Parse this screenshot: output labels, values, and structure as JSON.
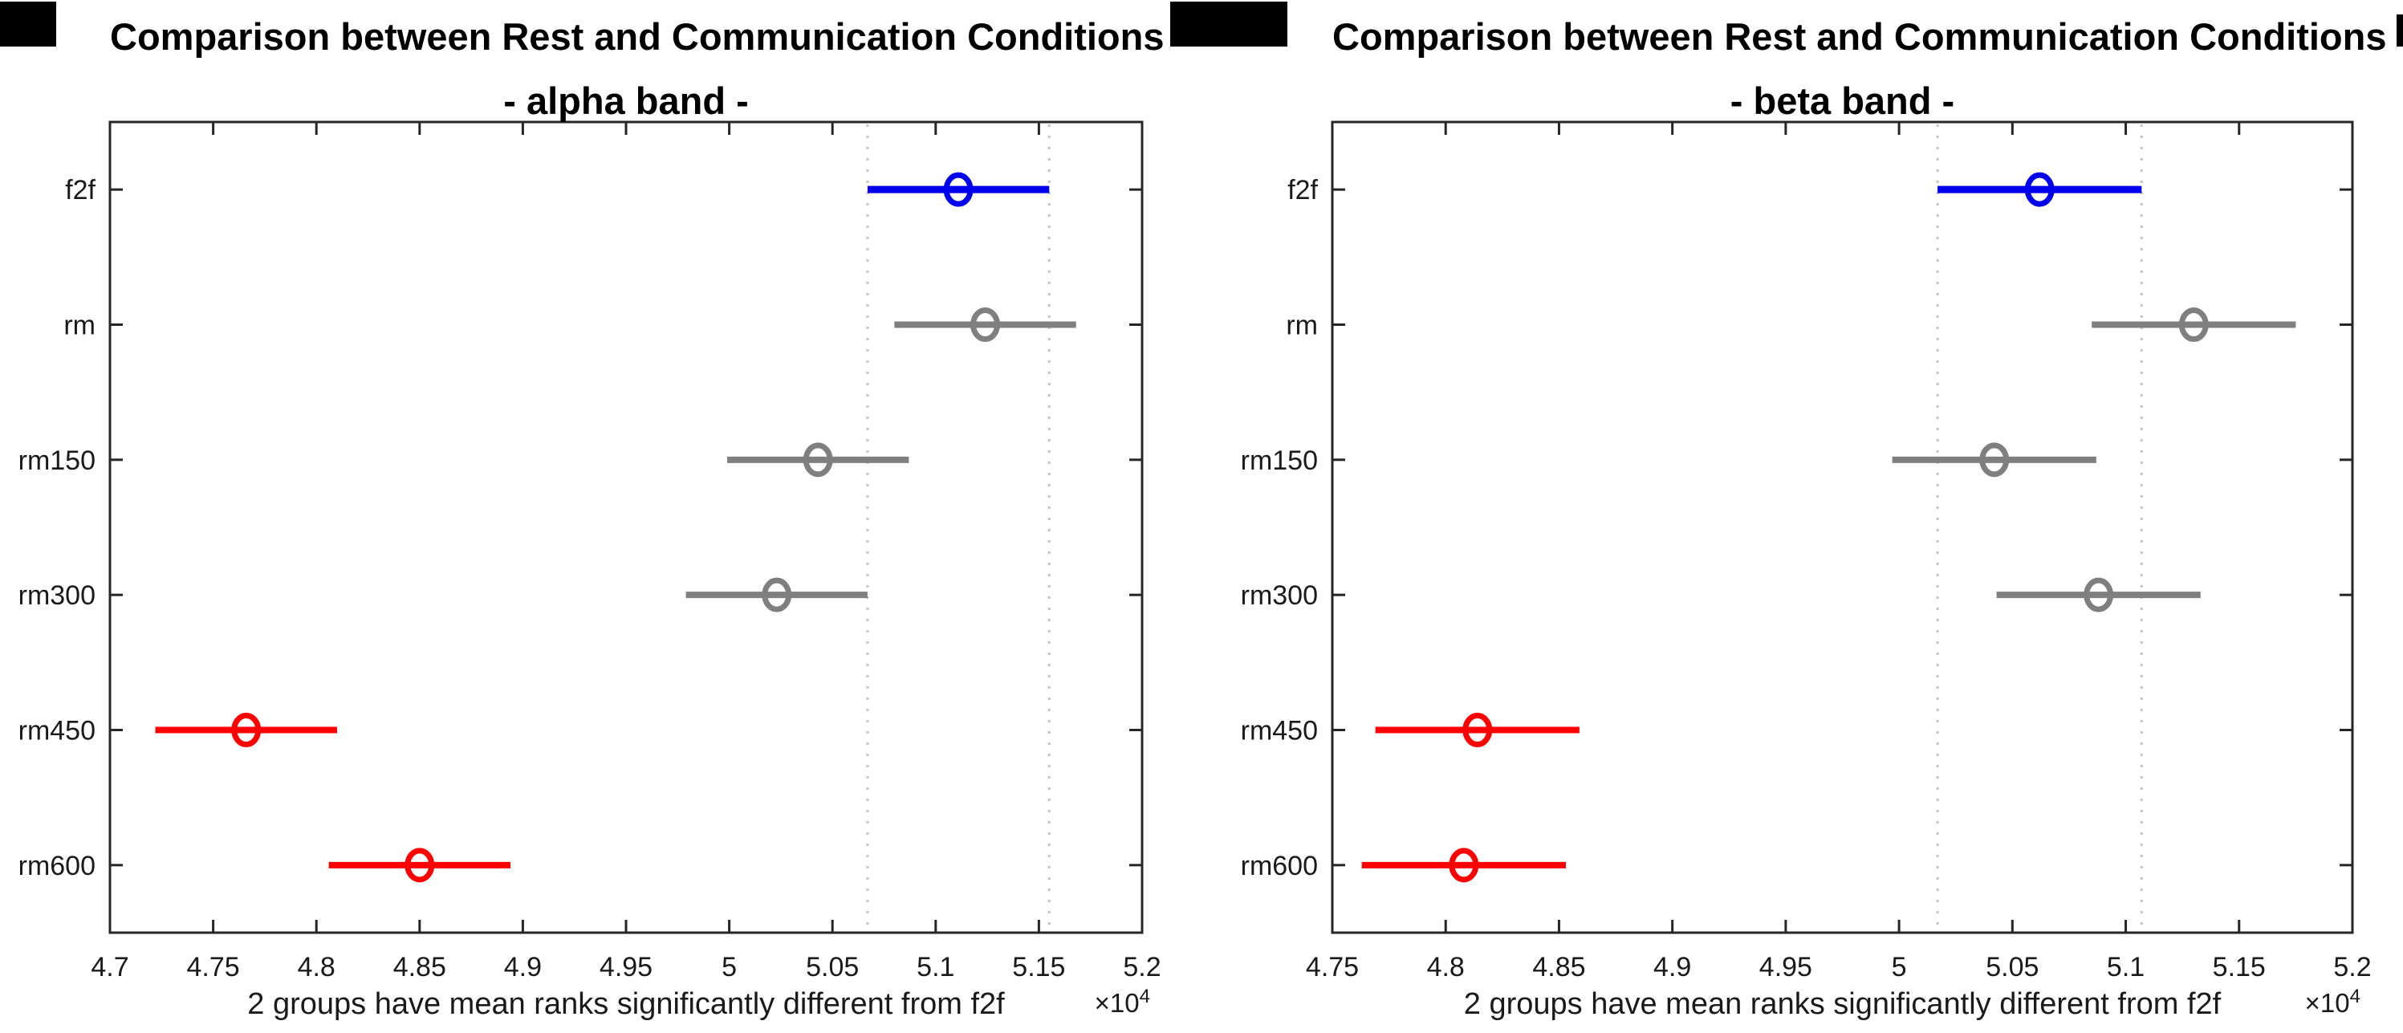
{
  "colors": {
    "highlight": "#0000EE",
    "significant": "#FF0000",
    "other": "#7F7F7F",
    "reference_line": "#C4C4C4",
    "axis": "#262626",
    "text": "#1A1A1A"
  },
  "chart_data": [
    {
      "band": "alpha",
      "type": "scatter",
      "title": "Comparison between Rest and Communication Conditions",
      "subtitle": "- alpha band -",
      "xlabel": "2 groups have mean ranks significantly different from f2f",
      "exponent": {
        "label": "×10",
        "power": "4"
      },
      "value_scale": 10000,
      "xlim": [
        4.7,
        5.2
      ],
      "x_tick_labels": [
        "4.7",
        "4.75",
        "4.8",
        "4.85",
        "4.9",
        "4.95",
        "5",
        "5.05",
        "5.1",
        "5.15",
        "5.2"
      ],
      "categories": [
        "f2f",
        "rm",
        "rm150",
        "rm300",
        "rm450",
        "rm600"
      ],
      "series": [
        {
          "group": "f2f",
          "mean_rank": 5.111,
          "ci": [
            5.067,
            5.155
          ],
          "role": "highlight"
        },
        {
          "group": "rm",
          "mean_rank": 5.124,
          "ci": [
            5.08,
            5.168
          ],
          "role": "other"
        },
        {
          "group": "rm150",
          "mean_rank": 5.043,
          "ci": [
            4.999,
            5.087
          ],
          "role": "other"
        },
        {
          "group": "rm300",
          "mean_rank": 5.023,
          "ci": [
            4.979,
            5.067
          ],
          "role": "other"
        },
        {
          "group": "rm450",
          "mean_rank": 4.766,
          "ci": [
            4.722,
            4.81
          ],
          "role": "significant"
        },
        {
          "group": "rm600",
          "mean_rank": 4.85,
          "ci": [
            4.806,
            4.894
          ],
          "role": "significant"
        }
      ],
      "reference_lines": [
        5.067,
        5.155
      ],
      "grid": "off",
      "legend": "none"
    },
    {
      "band": "beta",
      "type": "scatter",
      "title": "Comparison between Rest and Communication Conditions",
      "subtitle": "- beta band -",
      "xlabel": "2 groups have mean ranks significantly different from f2f",
      "exponent": {
        "label": "×10",
        "power": "4"
      },
      "value_scale": 10000,
      "xlim": [
        4.75,
        5.2
      ],
      "x_tick_labels": [
        "4.75",
        "4.8",
        "4.85",
        "4.9",
        "4.95",
        "5",
        "5.05",
        "5.1",
        "5.15",
        "5.2"
      ],
      "categories": [
        "f2f",
        "rm",
        "rm150",
        "rm300",
        "rm450",
        "rm600"
      ],
      "series": [
        {
          "group": "f2f",
          "mean_rank": 5.062,
          "ci": [
            5.017,
            5.107
          ],
          "role": "highlight"
        },
        {
          "group": "rm",
          "mean_rank": 5.13,
          "ci": [
            5.085,
            5.175
          ],
          "role": "other"
        },
        {
          "group": "rm150",
          "mean_rank": 5.042,
          "ci": [
            4.997,
            5.087
          ],
          "role": "other"
        },
        {
          "group": "rm300",
          "mean_rank": 5.088,
          "ci": [
            5.043,
            5.133
          ],
          "role": "other"
        },
        {
          "group": "rm450",
          "mean_rank": 4.814,
          "ci": [
            4.769,
            4.859
          ],
          "role": "significant"
        },
        {
          "group": "rm600",
          "mean_rank": 4.808,
          "ci": [
            4.763,
            4.853
          ],
          "role": "significant"
        }
      ],
      "reference_lines": [
        5.017,
        5.107
      ],
      "grid": "off",
      "legend": "none"
    }
  ]
}
